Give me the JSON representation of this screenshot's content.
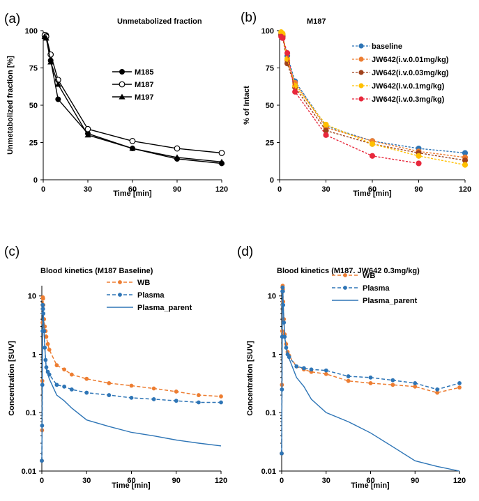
{
  "chart_data": [
    {
      "panel": "(a)",
      "type": "line",
      "title": "Unmetabolized fraction",
      "xlabel": "Time [min]",
      "ylabel": "Unmetabolized fraction [%]",
      "xlim": [
        0,
        120
      ],
      "ylim": [
        0,
        100
      ],
      "xticks": [
        0,
        30,
        60,
        90,
        120
      ],
      "yticks": [
        0,
        25,
        50,
        75,
        100
      ],
      "legend": "right",
      "series": [
        {
          "name": "M185",
          "marker": "filled-circle",
          "color": "#000000",
          "x": [
            1,
            2,
            5,
            10,
            30,
            60,
            90,
            120
          ],
          "y": [
            96,
            97,
            80,
            54,
            31,
            21,
            14,
            11
          ]
        },
        {
          "name": "M187",
          "marker": "open-circle",
          "color": "#000000",
          "x": [
            1,
            2,
            5,
            10,
            30,
            60,
            90,
            120
          ],
          "y": [
            97,
            96,
            84,
            67,
            34,
            26,
            21,
            18
          ]
        },
        {
          "name": "M197",
          "marker": "triangle",
          "color": "#000000",
          "x": [
            1,
            2,
            5,
            10,
            30,
            60,
            90,
            120
          ],
          "y": [
            96,
            95,
            79,
            64,
            30,
            21,
            15,
            12
          ]
        }
      ]
    },
    {
      "panel": "(b)",
      "type": "line",
      "title": "M187",
      "xlabel": "Time [min]",
      "ylabel": "% of Intact",
      "xlim": [
        0,
        120
      ],
      "ylim": [
        0,
        100
      ],
      "xticks": [
        0,
        30,
        60,
        90,
        120
      ],
      "yticks": [
        0,
        25,
        50,
        75,
        100
      ],
      "legend": "right",
      "series": [
        {
          "name": "baseline",
          "color": "#2e75b6",
          "x": [
            1,
            2,
            5,
            10,
            30,
            60,
            90,
            120
          ],
          "y": [
            97,
            96,
            83,
            66,
            36,
            26,
            21,
            18
          ]
        },
        {
          "name": "JW642(i.v.0.01mg/kg)",
          "color": "#ed7d31",
          "x": [
            1,
            2,
            5,
            10,
            30,
            60,
            90,
            120
          ],
          "y": [
            98,
            97,
            80,
            65,
            35,
            26,
            19,
            15
          ]
        },
        {
          "name": "JW642(i.v.0.03mg/kg)",
          "color": "#a0421c",
          "x": [
            1,
            2,
            5,
            10,
            30,
            60,
            90,
            120
          ],
          "y": [
            97,
            96,
            78,
            62,
            33,
            24,
            18,
            13
          ]
        },
        {
          "name": "JW642(i.v.0.1mg/kg)",
          "color": "#ffc000",
          "x": [
            1,
            2,
            5,
            10,
            30,
            60,
            90,
            120
          ],
          "y": [
            99,
            98,
            81,
            63,
            37,
            24,
            16,
            10
          ]
        },
        {
          "name": "JW642(i.v.0.3mg/kg)",
          "color": "#e8283c",
          "x": [
            1,
            2,
            5,
            10,
            30,
            60,
            90
          ],
          "y": [
            96,
            95,
            85,
            59,
            30,
            16,
            11
          ]
        }
      ]
    },
    {
      "panel": "(c)",
      "type": "line",
      "title": "Blood kinetics (M187 Baseline)",
      "xlabel": "Time [min]",
      "ylabel": "Concentration [SUV]",
      "yscale": "log",
      "xlim": [
        0,
        120
      ],
      "ylim": [
        0.01,
        15
      ],
      "xticks": [
        0,
        30,
        60,
        90,
        120
      ],
      "yticks": [
        0.01,
        0.1,
        1,
        10
      ],
      "yticklabels": [
        "0.01",
        "0.1",
        "1",
        "10"
      ],
      "legend": "top-right",
      "series": [
        {
          "name": "WB",
          "color": "#ed7d31",
          "style": "dashed-dots",
          "x": [
            0,
            0.17,
            0.33,
            0.5,
            0.67,
            0.83,
            1,
            1.5,
            2,
            2.5,
            3,
            4,
            5,
            10,
            15,
            20,
            30,
            45,
            60,
            75,
            90,
            105,
            120
          ],
          "y": [
            0.015,
            0.05,
            0.35,
            3.5,
            9.5,
            9,
            7,
            4,
            3,
            2.5,
            2,
            1.5,
            1.2,
            0.65,
            0.55,
            0.45,
            0.38,
            0.32,
            0.29,
            0.26,
            0.23,
            0.2,
            0.19
          ]
        },
        {
          "name": "Plasma",
          "color": "#2e75b6",
          "style": "dashed-dots",
          "x": [
            0,
            0.17,
            0.33,
            0.5,
            0.67,
            0.83,
            1,
            1.5,
            2,
            2.5,
            3,
            4,
            5,
            10,
            15,
            20,
            30,
            45,
            60,
            75,
            90,
            105,
            120
          ],
          "y": [
            0.015,
            0.06,
            0.3,
            2.5,
            7,
            6,
            5,
            2.5,
            1.3,
            0.8,
            0.6,
            0.5,
            0.45,
            0.3,
            0.28,
            0.25,
            0.22,
            0.2,
            0.18,
            0.17,
            0.16,
            0.15,
            0.15
          ]
        },
        {
          "name": "Plasma_parent",
          "color": "#2e75b6",
          "style": "solid",
          "x": [
            0,
            0.5,
            0.67,
            1,
            2,
            3,
            5,
            10,
            15,
            20,
            30,
            45,
            60,
            75,
            90,
            105,
            120
          ],
          "y": [
            0.015,
            2.5,
            7,
            5,
            1.3,
            0.55,
            0.38,
            0.2,
            0.16,
            0.12,
            0.075,
            0.058,
            0.046,
            0.04,
            0.034,
            0.03,
            0.027
          ]
        }
      ]
    },
    {
      "panel": "(d)",
      "type": "line",
      "title": "Blood kinetics (M187. JW642 0.3mg/kg)",
      "xlabel": "Time [min]",
      "ylabel": "Concentration [SUV]",
      "yscale": "log",
      "xlim": [
        0,
        120
      ],
      "ylim": [
        0.01,
        15
      ],
      "xticks": [
        0,
        30,
        60,
        90,
        120
      ],
      "yticks": [
        0.01,
        0.1,
        1,
        10
      ],
      "yticklabels": [
        "0.01",
        "0.1",
        "1",
        "10"
      ],
      "legend": "top-right",
      "series": [
        {
          "name": "WB",
          "color": "#ed7d31",
          "style": "dashed-dots",
          "x": [
            0,
            0.17,
            0.33,
            0.5,
            0.67,
            0.83,
            1,
            1.5,
            2,
            3,
            4,
            5,
            10,
            15,
            20,
            30,
            45,
            60,
            75,
            90,
            105,
            120
          ],
          "y": [
            0.02,
            0.3,
            2.5,
            14,
            15,
            13,
            8,
            4,
            2.2,
            1.5,
            1.1,
            0.95,
            0.62,
            0.55,
            0.5,
            0.46,
            0.35,
            0.32,
            0.3,
            0.28,
            0.22,
            0.27
          ]
        },
        {
          "name": "Plasma",
          "color": "#2e75b6",
          "style": "dashed-dots",
          "x": [
            0,
            0.17,
            0.33,
            0.5,
            0.67,
            0.83,
            1,
            1.5,
            2,
            3,
            4,
            5,
            10,
            15,
            20,
            30,
            45,
            60,
            75,
            90,
            105,
            120
          ],
          "y": [
            0.02,
            0.25,
            2,
            12,
            14,
            12,
            7,
            3.5,
            2,
            1.3,
            1,
            0.9,
            0.62,
            0.58,
            0.55,
            0.53,
            0.42,
            0.4,
            0.36,
            0.32,
            0.25,
            0.32
          ]
        },
        {
          "name": "Plasma_parent",
          "color": "#2e75b6",
          "style": "solid",
          "x": [
            0,
            0.5,
            0.67,
            1,
            2,
            3,
            5,
            10,
            15,
            20,
            30,
            45,
            60,
            75,
            90,
            105,
            120
          ],
          "y": [
            0.02,
            12,
            14,
            7,
            2,
            1.3,
            0.85,
            0.4,
            0.28,
            0.17,
            0.1,
            0.07,
            0.045,
            0.026,
            0.015,
            0.012,
            0.01
          ]
        }
      ]
    }
  ]
}
